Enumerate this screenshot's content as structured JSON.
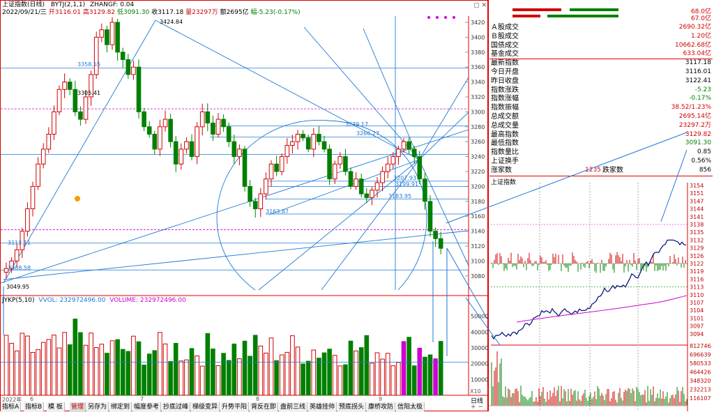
{
  "header": {
    "title": "上证指数(日线)",
    "indicator": "BYTJ(2,1,1)",
    "indicator2": "ZHANGF: 0.04",
    "line2_date": "2022/09/21/三",
    "line2_open": "开3116.01",
    "line2_high": "高3129.82",
    "line2_low": "低3091.30",
    "line2_close": "收3117.18",
    "line2_vol": "量23297万",
    "line2_amt": "额2695亿",
    "line2_chg": "幅-5.23(-0.17%)"
  },
  "price_axis": [
    "3420",
    "3400",
    "3380",
    "3360",
    "3340",
    "3320",
    "3300",
    "3280",
    "3260",
    "3240",
    "3220",
    "3200",
    "3180",
    "3160",
    "3140",
    "3120",
    "3100",
    "3080"
  ],
  "annotations": {
    "a1": "3424.84",
    "a2": "3358.55",
    "a3": "3305.41",
    "a4": "3279.17",
    "a5": "3266.27",
    "a6": "3207.93",
    "a7": "3199.91",
    "a8": "3183.95",
    "a9": "3163.87",
    "a10": "3113.11",
    "a11": "3088.58",
    "a12": "3049.95"
  },
  "volume_header": {
    "name": "JYKP(5,10)",
    "vvol": "VVOL: 232972496.00",
    "volume": "VOLUME: 232972496.00"
  },
  "volume_axis": [
    "50000",
    "40000",
    "30000",
    "20000",
    "10000"
  ],
  "volume_unit": "X10",
  "date_axis": {
    "d1": "2022年",
    "d2": "6",
    "d3": "7",
    "d4": "8",
    "d5": "9"
  },
  "bottom_tabs": [
    "指标A",
    "指标B",
    "模 板",
    "管理",
    "另存为",
    "绑定到",
    "幅度参考",
    "抄底过峰",
    "梯级变异",
    "升势平阳",
    "背反在即",
    "盘前三线",
    "英雄挂帅",
    "预底拐头",
    "康桥攻防",
    "信阳太极"
  ],
  "period_label": "日线",
  "stats": {
    "up_count_val": "68.0亿",
    "down_count_val": "67.0亿",
    "rows": [
      {
        "k": "Ａ股成交",
        "v": "2690.32亿"
      },
      {
        "k": "Ｂ股成交",
        "v": "1.20亿"
      },
      {
        "k": "国债成交",
        "v": "10662.68亿"
      },
      {
        "k": "基金成交",
        "v": "633.04亿"
      },
      {
        "k": "最新指数",
        "v": "3117.18"
      },
      {
        "k": "今日开盘",
        "v": "3116.01"
      },
      {
        "k": "昨日收盘",
        "v": "3122.41"
      },
      {
        "k": "指数涨跌",
        "v": "-5.23"
      },
      {
        "k": "指数涨幅",
        "v": "-0.17%"
      },
      {
        "k": "指数振幅",
        "v": "38.52/1.23%"
      },
      {
        "k": "总成交额",
        "v": "2695.14亿"
      },
      {
        "k": "总成交量",
        "v": "23297.2万"
      },
      {
        "k": "最高指数",
        "v": "3129.82"
      },
      {
        "k": "最低指数",
        "v": "3091.30"
      },
      {
        "k": "指数量比",
        "v": "0.85"
      },
      {
        "k": "上证换手",
        "v": "0.56%"
      }
    ],
    "rise_label": "涨家数",
    "rise_val": "1235",
    "fall_label": "跌家数",
    "fall_val": "856"
  },
  "intraday": {
    "title": "上证指数",
    "price_ticks": [
      "3154",
      "3151",
      "3147",
      "3144",
      "3141",
      "3138",
      "3135",
      "3132",
      "3129",
      "3126",
      "3122",
      "3119",
      "3116",
      "3113",
      "3110",
      "3107",
      "3104",
      "3101",
      "3097",
      "3094"
    ],
    "vol_ticks": [
      "812746",
      "696639",
      "580533",
      "464426",
      "348320",
      "232213",
      "116107"
    ]
  },
  "colors": {
    "up": "#d00000",
    "down": "#008000",
    "line": "#1e78d4",
    "ma": "#d000d0"
  }
}
